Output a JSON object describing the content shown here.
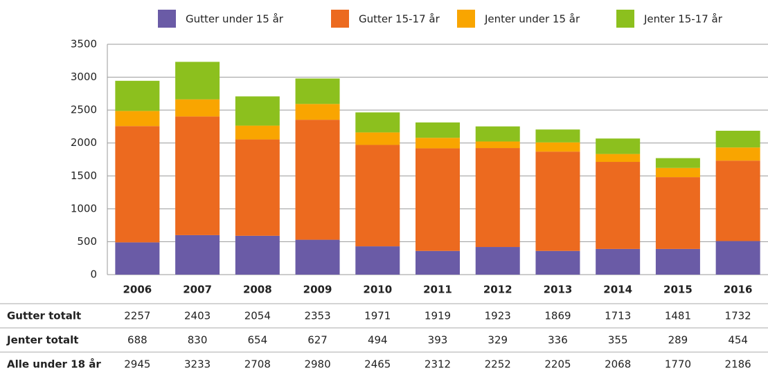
{
  "chart_data": {
    "type": "stacked_bar",
    "categories": [
      "2006",
      "2007",
      "2008",
      "2009",
      "2010",
      "2011",
      "2012",
      "2013",
      "2014",
      "2015",
      "2016"
    ],
    "series": [
      {
        "name": "Gutter under 15 år",
        "color": "#6a5ba6",
        "values": [
          490,
          600,
          590,
          530,
          430,
          360,
          420,
          360,
          390,
          390,
          510
        ]
      },
      {
        "name": "Gutter 15-17 år",
        "color": "#ec6a1f",
        "values": [
          1767,
          1803,
          1464,
          1823,
          1541,
          1559,
          1503,
          1509,
          1323,
          1091,
          1222
        ]
      },
      {
        "name": "Jenter under 15 år",
        "color": "#f9a500",
        "values": [
          230,
          260,
          210,
          240,
          190,
          160,
          100,
          140,
          120,
          140,
          200
        ]
      },
      {
        "name": "Jenter 15-17 år",
        "color": "#8cc01e",
        "values": [
          458,
          570,
          444,
          387,
          304,
          233,
          229,
          196,
          235,
          149,
          254
        ]
      }
    ],
    "ylim": [
      0,
      3500
    ],
    "yticks": [
      0,
      500,
      1000,
      1500,
      2000,
      2500,
      3000,
      3500
    ],
    "grid": true,
    "table": {
      "rows": [
        {
          "label": "Gutter totalt",
          "values": [
            2257,
            2403,
            2054,
            2353,
            1971,
            1919,
            1923,
            1869,
            1713,
            1481,
            1732
          ]
        },
        {
          "label": "Jenter totalt",
          "values": [
            688,
            830,
            654,
            627,
            494,
            393,
            329,
            336,
            355,
            289,
            454
          ]
        },
        {
          "label": "Alle under 18 år",
          "values": [
            2945,
            3233,
            2708,
            2980,
            2465,
            2312,
            2252,
            2205,
            2068,
            1770,
            2186
          ]
        }
      ]
    }
  }
}
